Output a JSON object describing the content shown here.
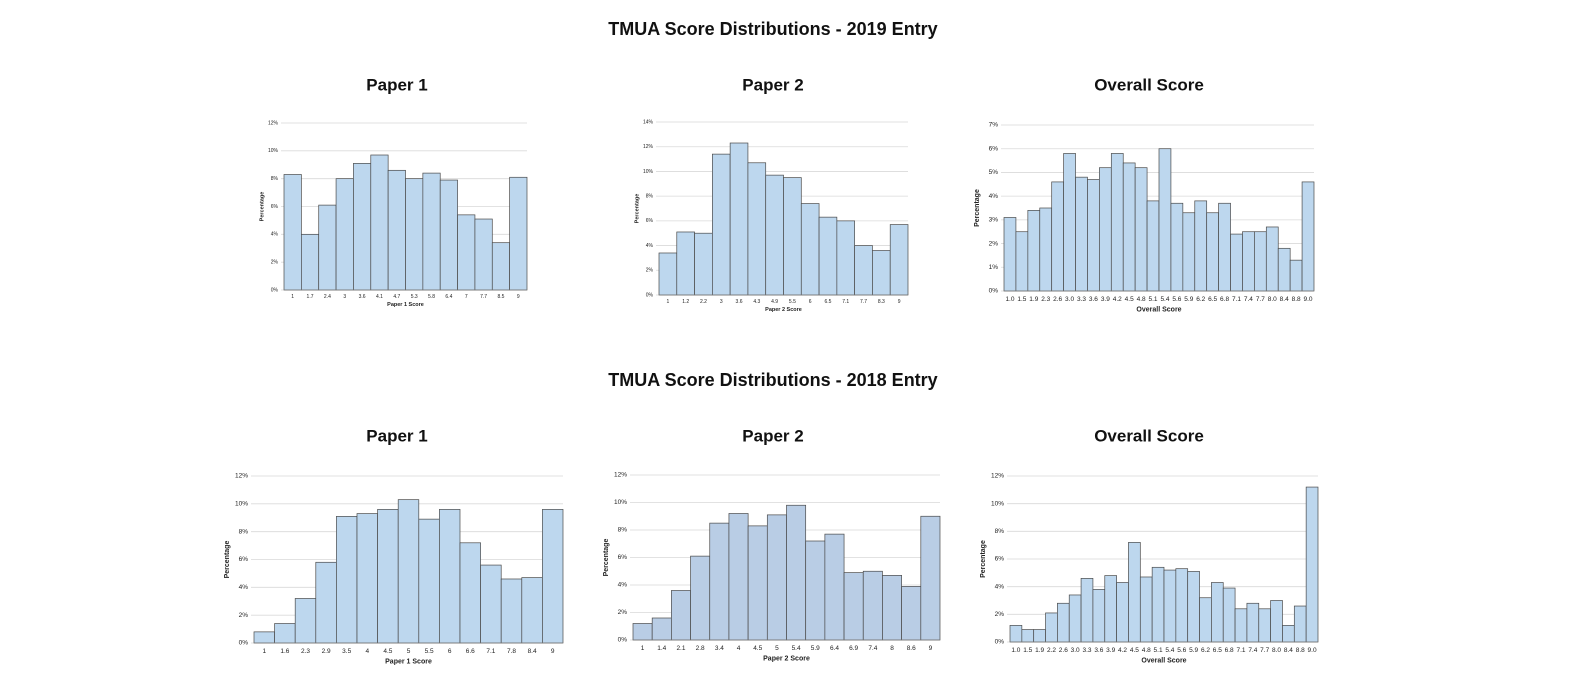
{
  "headings": [
    "TMUA Score Distributions - 2019 Entry",
    "TMUA Score Distributions - 2018 Entry"
  ],
  "chart_data": [
    {
      "type": "bar",
      "title": "Paper 1",
      "x_label": "Paper 1 Score",
      "y_label": "Percentage",
      "color": "#bdd7ee",
      "grid": true,
      "categories": [
        "1",
        "1.7",
        "2.4",
        "3",
        "3.6",
        "4.1",
        "4.7",
        "5.3",
        "5.8",
        "6.4",
        "7",
        "7.7",
        "8.5",
        "9"
      ],
      "values": [
        8.3,
        4.0,
        6.1,
        8.0,
        9.1,
        9.7,
        8.6,
        8.0,
        8.4,
        7.9,
        5.4,
        5.1,
        3.4,
        8.1
      ],
      "ylim": [
        0,
        12
      ],
      "yticks": [
        {
          "value": 0,
          "label": "0%"
        },
        {
          "value": 2,
          "label": "2%"
        },
        {
          "value": 4,
          "label": "4%"
        },
        {
          "value": 6,
          "label": "6%"
        },
        {
          "value": 8,
          "label": "8%"
        },
        {
          "value": 10,
          "label": "10%"
        },
        {
          "value": 12,
          "label": "12%"
        }
      ]
    },
    {
      "type": "bar",
      "title": "Paper 2",
      "x_label": "Paper 2 Score",
      "y_label": "Percentage",
      "color": "#bdd7ee",
      "grid": true,
      "categories": [
        "1",
        "1.2",
        "2.2",
        "3",
        "3.6",
        "4.3",
        "4.9",
        "5.5",
        "6",
        "6.5",
        "7.1",
        "7.7",
        "8.3",
        "9"
      ],
      "values": [
        3.4,
        5.1,
        5.0,
        11.4,
        12.3,
        10.7,
        9.7,
        9.5,
        7.4,
        6.3,
        6.0,
        4.0,
        3.6,
        5.7
      ],
      "ylim": [
        0,
        14
      ],
      "yticks": [
        {
          "value": 0,
          "label": "0%"
        },
        {
          "value": 2,
          "label": "2%"
        },
        {
          "value": 4,
          "label": "4%"
        },
        {
          "value": 6,
          "label": "6%"
        },
        {
          "value": 8,
          "label": "8%"
        },
        {
          "value": 10,
          "label": "10%"
        },
        {
          "value": 12,
          "label": "12%"
        },
        {
          "value": 14,
          "label": "14%"
        }
      ]
    },
    {
      "type": "bar",
      "title": "Overall Score",
      "x_label": "Overall Score",
      "y_label": "Percentage",
      "color": "#bdd7ee",
      "grid": true,
      "categories": [
        "1.0",
        "1.5",
        "1.9",
        "2.3",
        "2.6",
        "3.0",
        "3.3",
        "3.6",
        "3.9",
        "4.2",
        "4.5",
        "4.8",
        "5.1",
        "5.4",
        "5.6",
        "5.9",
        "6.2",
        "6.5",
        "6.8",
        "7.1",
        "7.4",
        "7.7",
        "8.0",
        "8.4",
        "8.8",
        "9.0"
      ],
      "values": [
        3.1,
        2.5,
        3.4,
        3.5,
        4.6,
        5.8,
        4.8,
        4.7,
        5.2,
        5.8,
        5.4,
        5.2,
        3.8,
        6.0,
        3.7,
        3.3,
        3.8,
        3.3,
        3.7,
        2.4,
        2.5,
        2.5,
        2.7,
        1.8,
        1.3,
        4.6
      ],
      "ylim": [
        0,
        7
      ],
      "yticks": [
        {
          "value": 0,
          "label": "0%"
        },
        {
          "value": 1,
          "label": "1%"
        },
        {
          "value": 2,
          "label": "2%"
        },
        {
          "value": 3,
          "label": "3%"
        },
        {
          "value": 4,
          "label": "4%"
        },
        {
          "value": 5,
          "label": "5%"
        },
        {
          "value": 6,
          "label": "6%"
        },
        {
          "value": 7,
          "label": "7%"
        }
      ]
    },
    {
      "type": "bar",
      "title": "Paper 1",
      "x_label": "Paper 1 Score",
      "y_label": "Percentage",
      "color": "#bdd7ee",
      "grid": true,
      "categories": [
        "1",
        "1.6",
        "2.3",
        "2.9",
        "3.5",
        "4",
        "4.5",
        "5",
        "5.5",
        "6",
        "6.6",
        "7.1",
        "7.8",
        "8.4",
        "9"
      ],
      "values": [
        0.8,
        1.4,
        3.2,
        5.8,
        9.1,
        9.3,
        9.6,
        10.3,
        8.9,
        9.6,
        7.2,
        5.6,
        4.6,
        4.7,
        9.6
      ],
      "ylim": [
        0,
        12
      ],
      "yticks": [
        {
          "value": 0,
          "label": "0%"
        },
        {
          "value": 2,
          "label": "2%"
        },
        {
          "value": 4,
          "label": "4%"
        },
        {
          "value": 6,
          "label": "6%"
        },
        {
          "value": 8,
          "label": "8%"
        },
        {
          "value": 10,
          "label": "10%"
        },
        {
          "value": 12,
          "label": "12%"
        }
      ]
    },
    {
      "type": "bar",
      "title": "Paper 2",
      "x_label": "Paper 2 Score",
      "y_label": "Percentage",
      "color": "#b9cde5",
      "grid": true,
      "categories": [
        "1",
        "1.4",
        "2.1",
        "2.8",
        "3.4",
        "4",
        "4.5",
        "5",
        "5.4",
        "5.9",
        "6.4",
        "6.9",
        "7.4",
        "8",
        "8.6",
        "9"
      ],
      "values": [
        1.2,
        1.6,
        3.6,
        6.1,
        8.5,
        9.2,
        8.3,
        9.1,
        9.8,
        7.2,
        7.7,
        4.9,
        5.0,
        4.7,
        3.9,
        9.0
      ],
      "ylim": [
        0,
        12
      ],
      "yticks": [
        {
          "value": 0,
          "label": "0%"
        },
        {
          "value": 2,
          "label": "2%"
        },
        {
          "value": 4,
          "label": "4%"
        },
        {
          "value": 6,
          "label": "6%"
        },
        {
          "value": 8,
          "label": "8%"
        },
        {
          "value": 10,
          "label": "10%"
        },
        {
          "value": 12,
          "label": "12%"
        }
      ]
    },
    {
      "type": "bar",
      "title": "Overall Score",
      "x_label": "Overall Score",
      "y_label": "Percentage",
      "color": "#bdd7ee",
      "grid": true,
      "categories": [
        "1.0",
        "1.5",
        "1.9",
        "2.2",
        "2.6",
        "3.0",
        "3.3",
        "3.6",
        "3.9",
        "4.2",
        "4.5",
        "4.8",
        "5.1",
        "5.4",
        "5.6",
        "5.9",
        "6.2",
        "6.5",
        "6.8",
        "7.1",
        "7.4",
        "7.7",
        "8.0",
        "8.4",
        "8.8",
        "9.0"
      ],
      "values": [
        1.2,
        0.9,
        0.9,
        2.1,
        2.8,
        3.4,
        4.6,
        3.8,
        4.8,
        4.3,
        7.2,
        4.7,
        5.4,
        5.2,
        5.3,
        5.1,
        3.2,
        4.3,
        3.9,
        2.4,
        2.8,
        2.4,
        3.0,
        1.2,
        2.6,
        11.2
      ],
      "ylim": [
        0,
        12
      ],
      "yticks": [
        {
          "value": 0,
          "label": "0%"
        },
        {
          "value": 2,
          "label": "2%"
        },
        {
          "value": 4,
          "label": "4%"
        },
        {
          "value": 6,
          "label": "6%"
        },
        {
          "value": 8,
          "label": "8%"
        },
        {
          "value": 10,
          "label": "10%"
        },
        {
          "value": 12,
          "label": "12%"
        }
      ]
    }
  ]
}
